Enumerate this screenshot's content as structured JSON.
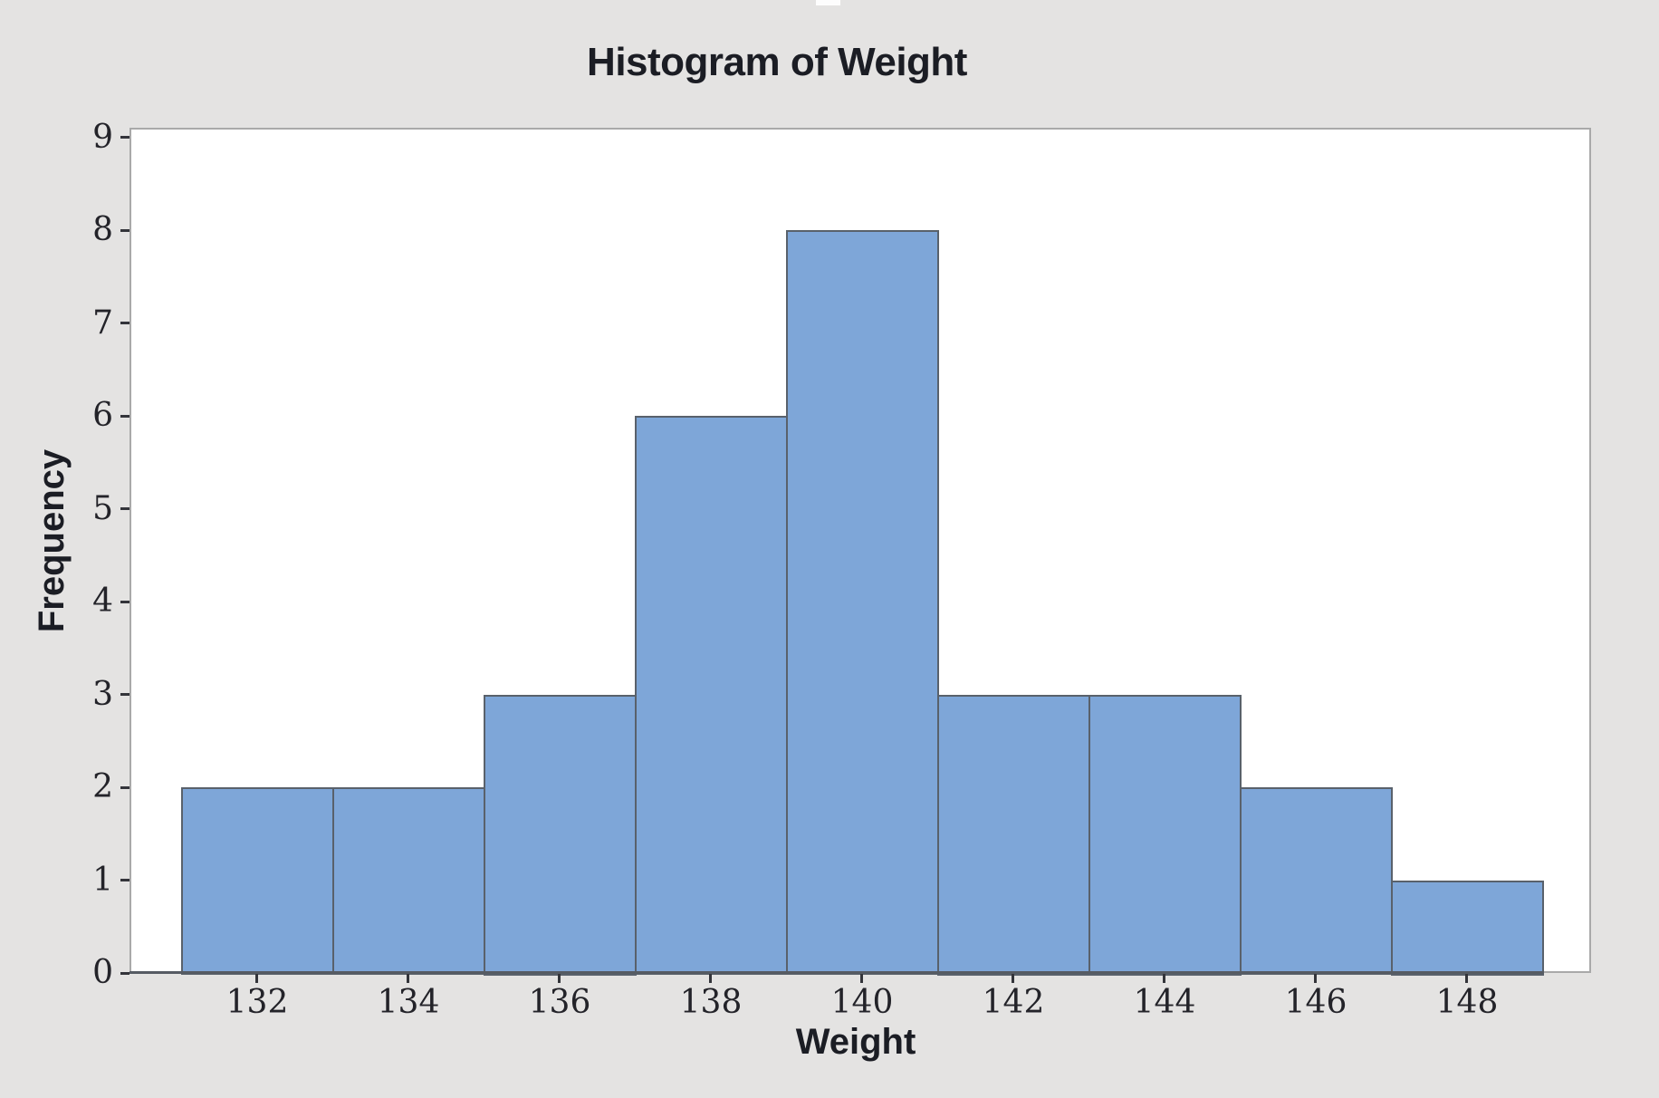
{
  "chart_data": {
    "type": "bar",
    "subtype": "histogram",
    "title": "Histogram of Weight",
    "xlabel": "Weight",
    "ylabel": "Frequency",
    "bin_width": 2,
    "bin_centers": [
      132,
      134,
      136,
      138,
      140,
      142,
      144,
      146,
      148
    ],
    "bin_edges": [
      131,
      133,
      135,
      137,
      139,
      141,
      143,
      145,
      147,
      149
    ],
    "frequencies": [
      2,
      2,
      3,
      6,
      8,
      3,
      3,
      2,
      1
    ],
    "x_ticks": [
      132,
      134,
      136,
      138,
      140,
      142,
      144,
      146,
      148
    ],
    "y_ticks": [
      0,
      1,
      2,
      3,
      4,
      5,
      6,
      7,
      8,
      9
    ],
    "xlim": [
      130.3,
      149.7
    ],
    "ylim": [
      0,
      9.1
    ],
    "grid": "off",
    "legend": "none",
    "colors": {
      "bar_fill": "#7ea6d8",
      "bar_edge": "#59616b",
      "figure_background": "#e4e3e2",
      "plot_background": "#ffffff",
      "plot_border": "#a9a9a9",
      "axis_line": "#565b63",
      "tick": "#33343a",
      "tick_label": "#232329",
      "title_color": "#1b1d24"
    }
  }
}
